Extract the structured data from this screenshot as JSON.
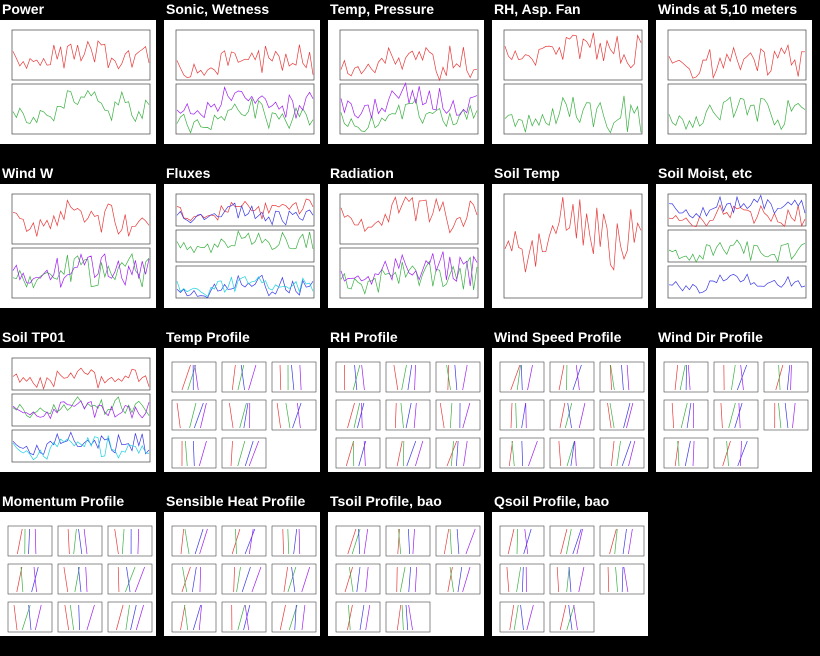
{
  "colors": {
    "background": "#000000",
    "title_text": "#ffffff",
    "thumb_background": "#ffffff",
    "trace_red": "#e83a3a",
    "trace_green": "#3cb043",
    "trace_blue": "#3a3ae8",
    "trace_purple": "#a020f0",
    "trace_cyan": "#20d0e0",
    "trace_orange": "#f0a020",
    "frame": "#444444"
  },
  "panels": [
    {
      "title": "Power",
      "kind": "two-panel",
      "icon": "power-plot-thumbnail"
    },
    {
      "title": "Sonic, Wetness",
      "kind": "two-panel",
      "icon": "sonic-wetness-plot-thumbnail"
    },
    {
      "title": "Temp, Pressure",
      "kind": "two-panel",
      "icon": "temp-pressure-plot-thumbnail"
    },
    {
      "title": "RH, Asp. Fan",
      "kind": "two-panel",
      "icon": "rh-fan-plot-thumbnail"
    },
    {
      "title": "Winds at 5,10 meters",
      "kind": "two-panel",
      "icon": "winds-plot-thumbnail"
    },
    {
      "title": "Wind W",
      "kind": "two-panel",
      "icon": "wind-w-plot-thumbnail"
    },
    {
      "title": "Fluxes",
      "kind": "three-panel",
      "icon": "fluxes-plot-thumbnail"
    },
    {
      "title": "Radiation",
      "kind": "two-panel",
      "icon": "radiation-plot-thumbnail"
    },
    {
      "title": "Soil Temp",
      "kind": "one-panel",
      "icon": "soil-temp-plot-thumbnail"
    },
    {
      "title": "Soil Moist, etc",
      "kind": "three-panel",
      "icon": "soil-moist-plot-thumbnail"
    },
    {
      "title": "Soil TP01",
      "kind": "three-panel",
      "icon": "soil-tp01-plot-thumbnail"
    },
    {
      "title": "Temp Profile",
      "kind": "grid",
      "icon": "temp-profile-thumbnail"
    },
    {
      "title": "RH Profile",
      "kind": "grid",
      "icon": "rh-profile-thumbnail"
    },
    {
      "title": "Wind Speed Profile",
      "kind": "grid",
      "icon": "wind-speed-profile-thumbnail"
    },
    {
      "title": "Wind Dir Profile",
      "kind": "grid",
      "icon": "wind-dir-profile-thumbnail"
    },
    {
      "title": "Momentum Profile",
      "kind": "grid",
      "icon": "momentum-profile-thumbnail"
    },
    {
      "title": "Sensible Heat Profile",
      "kind": "grid",
      "icon": "sensible-heat-profile-thumbnail"
    },
    {
      "title": "Tsoil Profile, bao",
      "kind": "grid",
      "icon": "tsoil-profile-thumbnail"
    },
    {
      "title": "Qsoil Profile, bao",
      "kind": "grid",
      "icon": "qsoil-profile-thumbnail"
    }
  ]
}
